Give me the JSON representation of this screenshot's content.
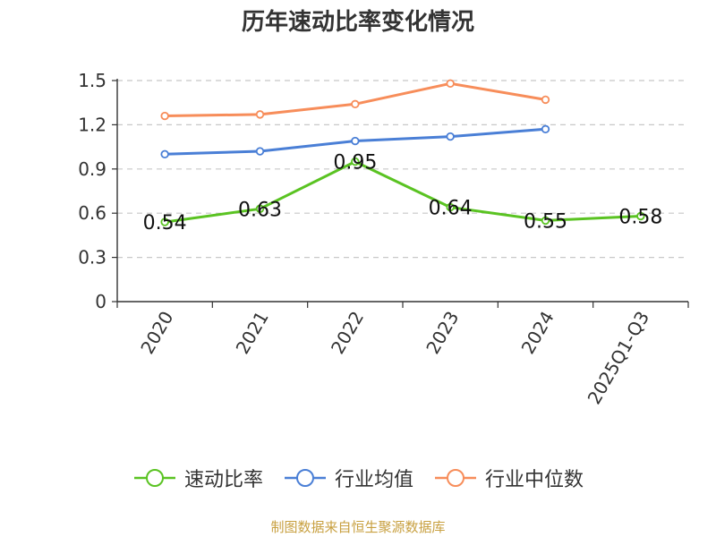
{
  "chart_data": {
    "type": "line",
    "title": "历年速动比率变化情况",
    "categories": [
      "2020",
      "2021",
      "2022",
      "2023",
      "2024",
      "2025Q1-Q3"
    ],
    "ylim": [
      0,
      1.5
    ],
    "yticks": [
      "0",
      "0.3",
      "0.6",
      "0.9",
      "1.2",
      "1.5"
    ],
    "ytick_values": [
      0,
      0.3,
      0.6,
      0.9,
      1.2,
      1.5
    ],
    "grid": true,
    "legend_position": "bottom",
    "series": [
      {
        "name": "速动比率",
        "color": "#5ac322",
        "values": [
          0.54,
          0.63,
          0.95,
          0.64,
          0.55,
          0.58
        ],
        "labels": [
          "0.54",
          "0.63",
          "0.95",
          "0.64",
          "0.55",
          "0.58"
        ]
      },
      {
        "name": "行业均值",
        "color": "#4a7fd6",
        "values": [
          1.0,
          1.02,
          1.09,
          1.12,
          1.17,
          null
        ]
      },
      {
        "name": "行业中位数",
        "color": "#f78d5a",
        "values": [
          1.26,
          1.27,
          1.34,
          1.48,
          1.37,
          null
        ]
      }
    ]
  },
  "footer": {
    "source": "制图数据来自恒生聚源数据库",
    "color": "#c8a040"
  }
}
